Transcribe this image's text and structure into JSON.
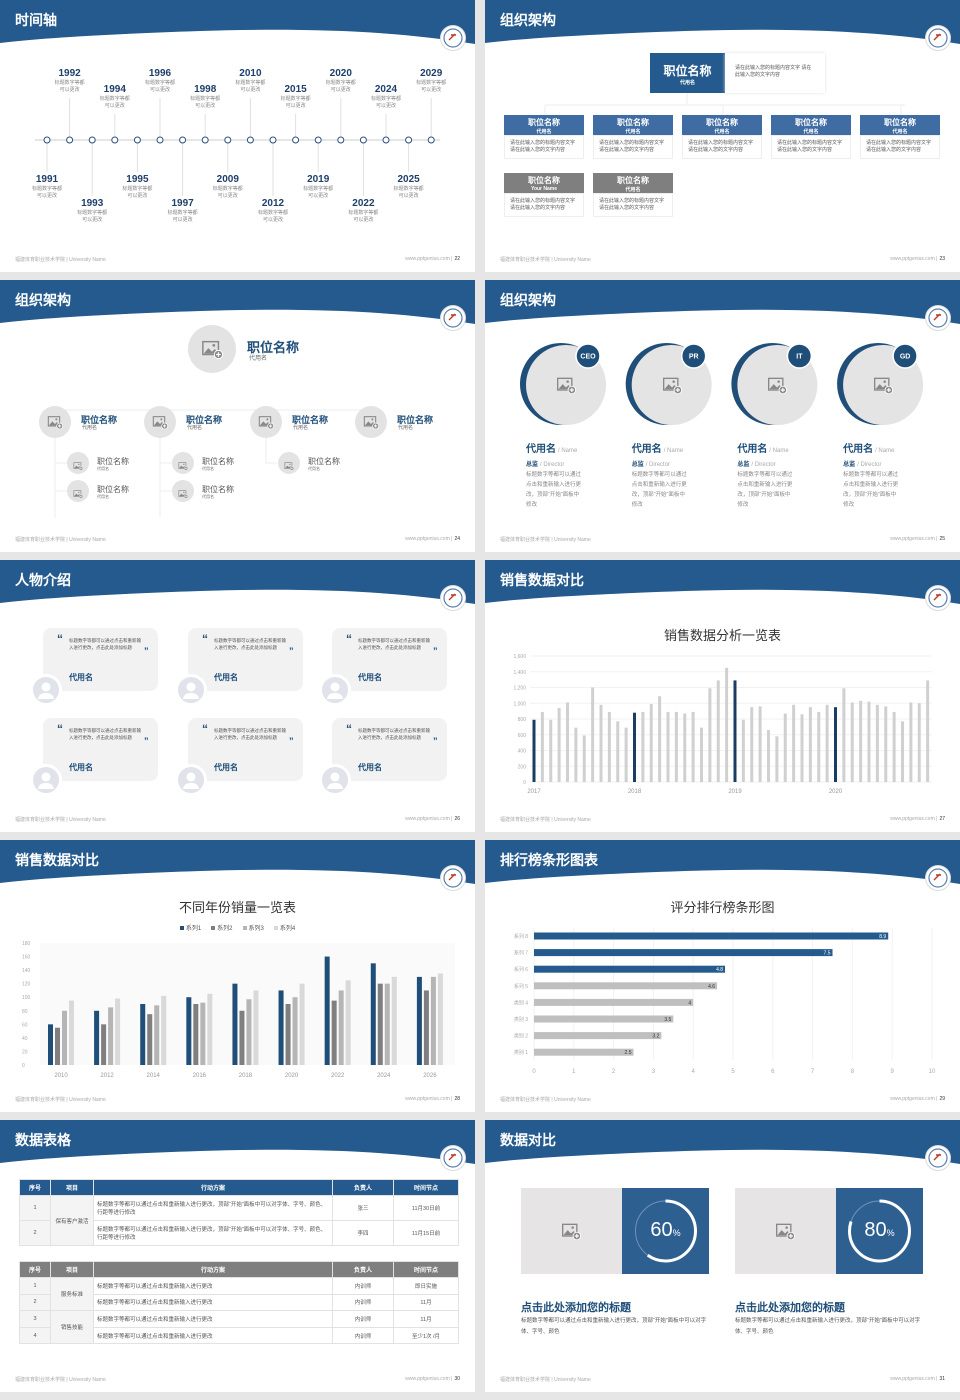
{
  "colors": {
    "header": "#245a8d",
    "accent": "#1f4e79",
    "chart_dark": "#1c3d63",
    "chart_gray": "#d0d0d0",
    "gray_header": "#7f7f7f"
  },
  "footer": {
    "left": "福建体育职业技术学院 | University Name",
    "site": "www.pptgenius.com |"
  },
  "slides": [
    {
      "title": "时间轴",
      "page": "22",
      "items": [
        {
          "year": "1991",
          "desc": "标题数字等都可以更改"
        },
        {
          "year": "1992",
          "desc": "标题数字等都可以更改"
        },
        {
          "year": "1993",
          "desc": "标题数字等都可以更改"
        },
        {
          "year": "1994",
          "desc": "标题数字等都可以更改"
        },
        {
          "year": "1995",
          "desc": "标题数字等都可以更改"
        },
        {
          "year": "1996",
          "desc": "标题数字等都可以更改"
        },
        {
          "year": "1997",
          "desc": "标题数字等都可以更改"
        },
        {
          "year": "1998",
          "desc": "标题数字等都可以更改"
        },
        {
          "year": "2009",
          "desc": "标题数字等都可以更改"
        },
        {
          "year": "2010",
          "desc": "标题数字等都可以更改"
        },
        {
          "year": "2012",
          "desc": "标题数字等都可以更改"
        },
        {
          "year": "2015",
          "desc": "标题数字等都可以更改"
        },
        {
          "year": "2019",
          "desc": "标题数字等都可以更改"
        },
        {
          "year": "2020",
          "desc": "标题数字等都可以更改"
        },
        {
          "year": "2022",
          "desc": "标题数字等都可以更改"
        },
        {
          "year": "2024",
          "desc": "标题数字等都可以更改"
        },
        {
          "year": "2025",
          "desc": "标题数字等都可以更改"
        },
        {
          "year": "2029",
          "desc": "标题数字等都可以更改"
        }
      ]
    },
    {
      "title": "组织架构",
      "page": "23",
      "top": {
        "title": "职位名称",
        "sub": "代用名",
        "desc": "请在此输入您的标题内容文字 请在此输入您的文字内容"
      },
      "boxes": [
        {
          "title": "职位名称",
          "sub": "代用名",
          "desc": "请在此输入您的标题内容文字 请在此输入您的文字内容",
          "gray": false
        },
        {
          "title": "职位名称",
          "sub": "代用名",
          "desc": "请在此输入您的标题内容文字 请在此输入您的文字内容",
          "gray": false
        },
        {
          "title": "职位名称",
          "sub": "代用名",
          "desc": "请在此输入您的标题内容文字 请在此输入您的文字内容",
          "gray": false
        },
        {
          "title": "职位名称",
          "sub": "代用名",
          "desc": "请在此输入您的标题内容文字 请在此输入您的文字内容",
          "gray": false
        },
        {
          "title": "职位名称",
          "sub": "代用名",
          "desc": "请在此输入您的标题内容文字 请在此输入您的文字内容",
          "gray": false
        },
        {
          "title": "职位名称",
          "sub": "Your Name",
          "desc": "请在此输入您的标题内容文字 请在此输入您的文字内容",
          "gray": true
        },
        {
          "title": "职位名称",
          "sub": "代用名",
          "desc": "请在此输入您的标题内容文字 请在此输入您的文字内容",
          "gray": true
        }
      ]
    },
    {
      "title": "组织架构",
      "page": "24",
      "top": {
        "title": "职位名称",
        "sub": "代用名"
      },
      "branches": [
        {
          "title": "职位名称",
          "sub": "代用名",
          "children": [
            {
              "title": "职位名称",
              "sub": "代用名"
            },
            {
              "title": "职位名称",
              "sub": "代用名"
            }
          ]
        },
        {
          "title": "职位名称",
          "sub": "代用名",
          "children": [
            {
              "title": "职位名称",
              "sub": "代用名"
            },
            {
              "title": "职位名称",
              "sub": "代用名"
            }
          ]
        },
        {
          "title": "职位名称",
          "sub": "代用名",
          "children": [
            {
              "title": "职位名称",
              "sub": "代用名"
            }
          ]
        },
        {
          "title": "职位名称",
          "sub": "代用名",
          "children": []
        }
      ]
    },
    {
      "title": "组织架构",
      "page": "25",
      "people": [
        {
          "badge": "CEO",
          "name": "代用名",
          "name_en": "/ Name",
          "role": "总监",
          "role_en": "/  Director",
          "desc": "标题数字等都可以通过点击和重新输入进行更改，顶部“开始”面板中修改"
        },
        {
          "badge": "PR",
          "name": "代用名",
          "name_en": "/ Name",
          "role": "总监",
          "role_en": "/  Director",
          "desc": "标题数字等都可以通过点击和重新输入进行更改，顶部“开始”面板中修改"
        },
        {
          "badge": "IT",
          "name": "代用名",
          "name_en": "/ Name",
          "role": "总监",
          "role_en": "/  Director",
          "desc": "标题数字等都可以通过点击和重新输入进行更改，顶部“开始”面板中修改"
        },
        {
          "badge": "GD",
          "name": "代用名",
          "name_en": "/ Name",
          "role": "总监",
          "role_en": "/  Director",
          "desc": "标题数字等都可以通过点击和重新输入进行更改，顶部“开始”面板中修改"
        }
      ]
    },
    {
      "title": "人物介绍",
      "page": "26",
      "cards": [
        {
          "quote": "标题数字等都可以通过点击和重新输入进行更改，点击此处添加标题",
          "name": "代用名"
        },
        {
          "quote": "标题数字等都可以通过点击和重新输入进行更改，点击此处添加标题",
          "name": "代用名"
        },
        {
          "quote": "标题数字等都可以通过点击和重新输入进行更改，点击此处添加标题",
          "name": "代用名"
        },
        {
          "quote": "标题数字等都可以通过点击和重新输入进行更改，点击此处添加标题",
          "name": "代用名"
        },
        {
          "quote": "标题数字等都可以通过点击和重新输入进行更改，点击此处添加标题",
          "name": "代用名"
        },
        {
          "quote": "标题数字等都可以通过点击和重新输入进行更改，点击此处添加标题",
          "name": "代用名"
        }
      ]
    },
    {
      "title": "销售数据对比",
      "page": "27"
    },
    {
      "title": "销售数据对比",
      "page": "28"
    },
    {
      "title": "排行榜条形图表",
      "page": "29"
    },
    {
      "title": "数据表格",
      "page": "30",
      "table1": {
        "headers": [
          "序号",
          "项目",
          "行动方案",
          "负责人",
          "时间节点"
        ],
        "group": "保有客户激活",
        "rows": [
          [
            "1",
            "标题数字等都可以通过点击和重新输入进行更改，顶部“开始”面板中可以对字体、字号、颜色、行距等进行修改",
            "张三",
            "11月30日前"
          ],
          [
            "2",
            "标题数字等都可以通过点击和重新输入进行更改，顶部“开始”面板中可以对字体、字号、颜色、行距等进行修改",
            "李四",
            "11月15日前"
          ]
        ]
      },
      "table2": {
        "headers": [
          "序号",
          "项目",
          "行动方案",
          "负责人",
          "时间节点"
        ],
        "groups": [
          "服务标准",
          "销售技能"
        ],
        "rows": [
          [
            "1",
            "标题数字等都可以通过点击和重新输入进行更改",
            "内训师",
            "即日实施"
          ],
          [
            "2",
            "标题数字等都可以通过点击和重新输入进行更改",
            "内训师",
            "11月"
          ],
          [
            "3",
            "标题数字等都可以通过点击和重新输入进行更改",
            "内训师",
            "11月"
          ],
          [
            "4",
            "标题数字等都可以通过点击和重新输入进行更改",
            "内训师",
            "至少1次 /月"
          ]
        ]
      }
    },
    {
      "title": "数据对比",
      "page": "31",
      "stats": [
        {
          "percent": 60,
          "value": "60",
          "unit": "%",
          "title": "点击此处添加您的标题",
          "desc": "标题数字等都可以通过点击和重新输入进行更改，顶部“开始”面板中可以对字体、字号、颜色"
        },
        {
          "percent": 80,
          "value": "80",
          "unit": "%",
          "title": "点击此处添加您的标题",
          "desc": "标题数字等都可以通过点击和重新输入进行更改，顶部“开始”面板中可以对字体、字号、颜色"
        }
      ]
    }
  ],
  "chart_data": [
    {
      "type": "bar",
      "title": "销售数据分析一览表",
      "ylim": [
        0,
        1600
      ],
      "yticks": [
        "0",
        "200",
        "400",
        "600",
        "800",
        "1,000",
        "1,200",
        "1,400",
        "1,600"
      ],
      "xlabels": [
        "2017",
        "2018",
        "2019",
        "2020"
      ],
      "highlight_every": 12,
      "grid": true,
      "values": [
        790,
        890,
        790,
        940,
        1010,
        690,
        590,
        1200,
        980,
        890,
        770,
        690,
        880,
        890,
        990,
        1090,
        890,
        890,
        870,
        890,
        690,
        1190,
        1290,
        1450,
        1290,
        790,
        950,
        960,
        660,
        580,
        870,
        980,
        860,
        950,
        890,
        980,
        950,
        1190,
        1010,
        1030,
        1020,
        980,
        960,
        890,
        770,
        1010,
        1000,
        1290
      ]
    },
    {
      "type": "bar",
      "title": "不同年份销量一览表",
      "ylim": [
        0,
        180
      ],
      "yticks": [
        "0",
        "20",
        "40",
        "60",
        "80",
        "100",
        "120",
        "140",
        "160",
        "180"
      ],
      "legend": "top",
      "categories": [
        "2010",
        "2012",
        "2014",
        "2016",
        "2018",
        "2020",
        "2022",
        "2024",
        "2026"
      ],
      "series": [
        {
          "name": "系列1",
          "color": "#1f4e79",
          "values": [
            60,
            80,
            90,
            100,
            120,
            110,
            160,
            150,
            130
          ]
        },
        {
          "name": "系列2",
          "color": "#7f7f7f",
          "values": [
            55,
            60,
            75,
            90,
            80,
            90,
            95,
            120,
            110
          ]
        },
        {
          "name": "系列3",
          "color": "#b5b5b5",
          "values": [
            80,
            85,
            88,
            92,
            97,
            100,
            110,
            120,
            130
          ]
        },
        {
          "name": "系列4",
          "color": "#d9d9d9",
          "values": [
            95,
            98,
            102,
            105,
            110,
            120,
            125,
            130,
            135
          ]
        }
      ]
    },
    {
      "type": "bar",
      "orientation": "horizontal",
      "title": "评分排行榜条形图",
      "xlim": [
        0,
        10
      ],
      "xticks": [
        "0",
        "1",
        "2",
        "3",
        "4",
        "5",
        "6",
        "7",
        "8",
        "9",
        "10"
      ],
      "categories": [
        "系列 8",
        "系列 7",
        "系列 6",
        "系列 5",
        "类别 4",
        "类别 3",
        "类别 2",
        "类别 1"
      ],
      "values": [
        8.9,
        7.5,
        4.8,
        4.6,
        4,
        3.5,
        3.2,
        2.5
      ],
      "labels": [
        "8.9",
        "7.5",
        "4.8",
        "4.6",
        "4",
        "3.5",
        "3.2",
        "2.5"
      ],
      "highlight_top": 3
    }
  ]
}
